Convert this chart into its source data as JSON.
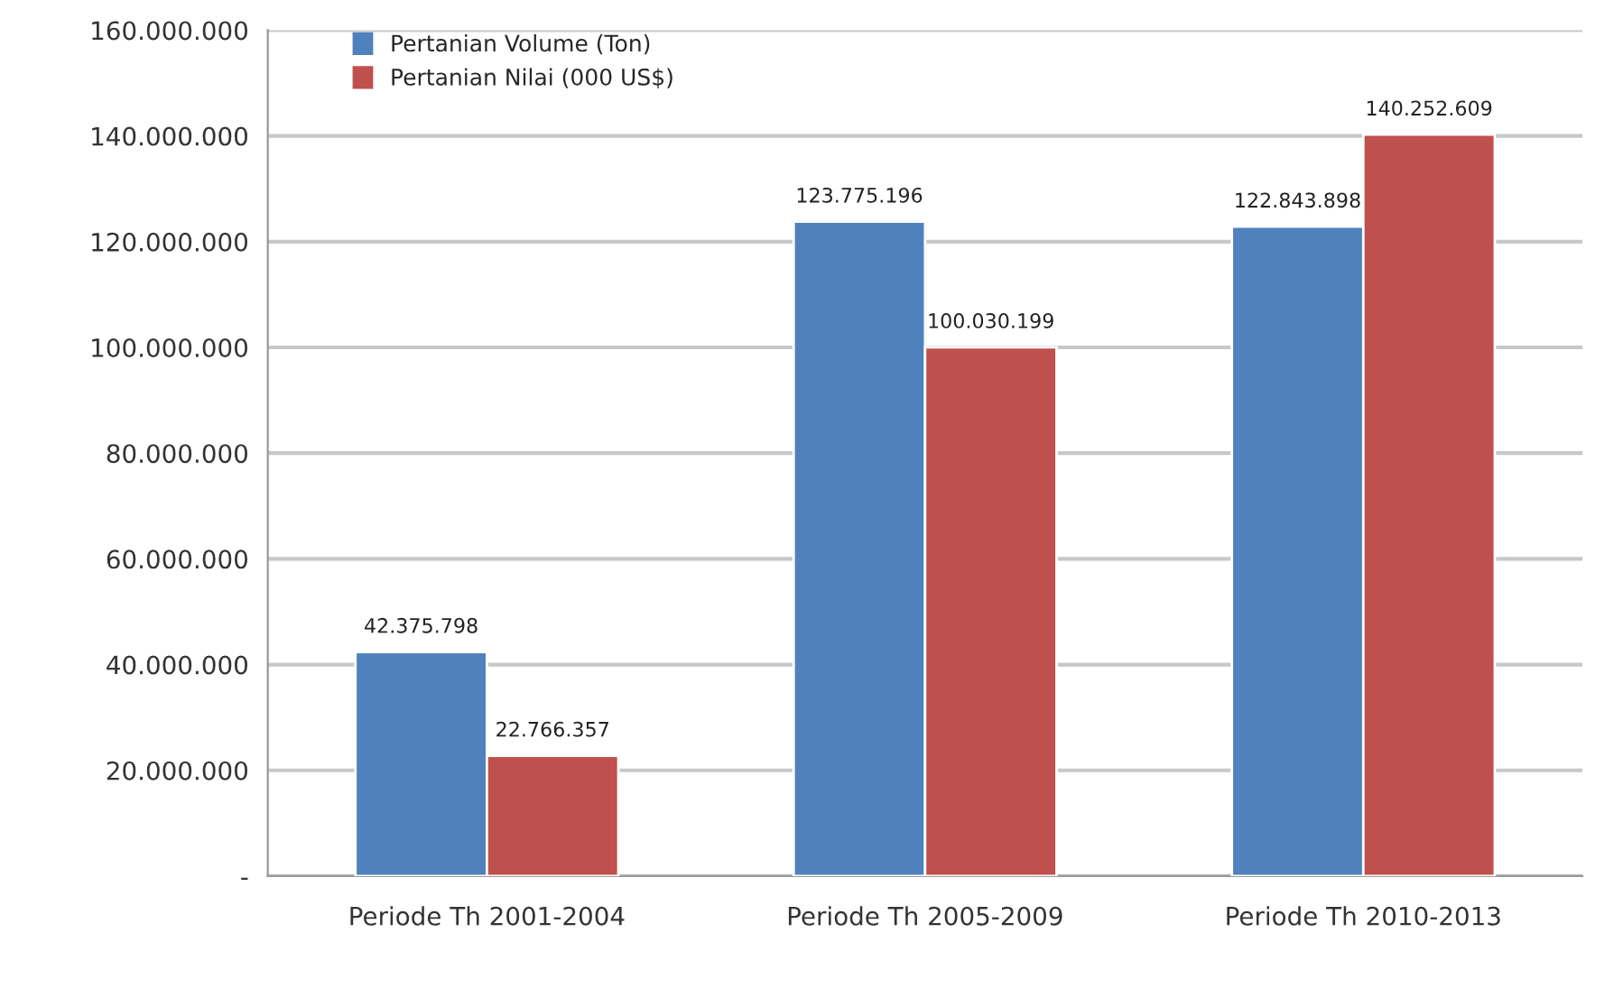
{
  "chart_data": {
    "type": "bar",
    "categories": [
      "Periode Th 2001-2004",
      "Periode Th 2005-2009",
      "Periode Th 2010-2013"
    ],
    "series": [
      {
        "name": "Pertanian Volume (Ton)",
        "color": "#4f81bd",
        "values": [
          42375798,
          123775196,
          122843898
        ],
        "value_labels": [
          "42.375.798",
          "123.775.196",
          "122.843.898"
        ]
      },
      {
        "name": "Pertanian Nilai (000 US$)",
        "color": "#c0504d",
        "values": [
          22766357,
          100030199,
          140252609
        ],
        "value_labels": [
          "22.766.357",
          "100.030.199",
          "140.252.609"
        ]
      }
    ],
    "ylim": [
      0,
      160000000
    ],
    "yticks": [
      {
        "value": 0,
        "label": "-"
      },
      {
        "value": 20000000,
        "label": "20.000.000"
      },
      {
        "value": 40000000,
        "label": "40.000.000"
      },
      {
        "value": 60000000,
        "label": "60.000.000"
      },
      {
        "value": 80000000,
        "label": "80.000.000"
      },
      {
        "value": 100000000,
        "label": "100.000.000"
      },
      {
        "value": 120000000,
        "label": "120.000.000"
      },
      {
        "value": 140000000,
        "label": "140.000.000"
      },
      {
        "value": 160000000,
        "label": "160.000.000"
      }
    ],
    "grid": "y",
    "legend": "top left"
  }
}
